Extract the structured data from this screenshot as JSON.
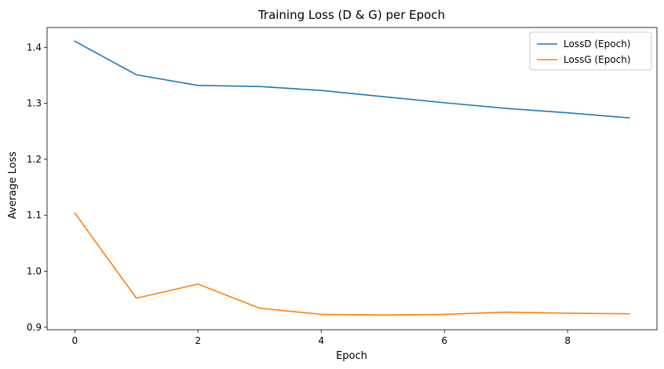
{
  "chart_data": {
    "type": "line",
    "title": "Training Loss (D & G) per Epoch",
    "xlabel": "Epoch",
    "ylabel": "Average Loss",
    "x": [
      0,
      1,
      2,
      3,
      4,
      5,
      6,
      7,
      8,
      9
    ],
    "xlim": [
      -0.45,
      9.45
    ],
    "ylim": [
      0.8955,
      1.4355
    ],
    "xticks": [
      0,
      2,
      4,
      6,
      8
    ],
    "xtick_labels": [
      "0",
      "2",
      "4",
      "6",
      "8"
    ],
    "yticks": [
      0.9,
      1.0,
      1.1,
      1.2,
      1.3,
      1.4
    ],
    "ytick_labels": [
      "0.9",
      "1.0",
      "1.1",
      "1.2",
      "1.3",
      "1.4"
    ],
    "grid": false,
    "legend_position": "top-right",
    "series": [
      {
        "name": "LossD (Epoch)",
        "color": "#1f77b4",
        "values": [
          1.411,
          1.351,
          1.332,
          1.33,
          1.323,
          1.312,
          1.301,
          1.291,
          1.283,
          1.274
        ]
      },
      {
        "name": "LossG (Epoch)",
        "color": "#ff7f0e",
        "values": [
          1.104,
          0.952,
          0.977,
          0.934,
          0.923,
          0.922,
          0.923,
          0.927,
          0.925,
          0.924
        ]
      }
    ]
  }
}
